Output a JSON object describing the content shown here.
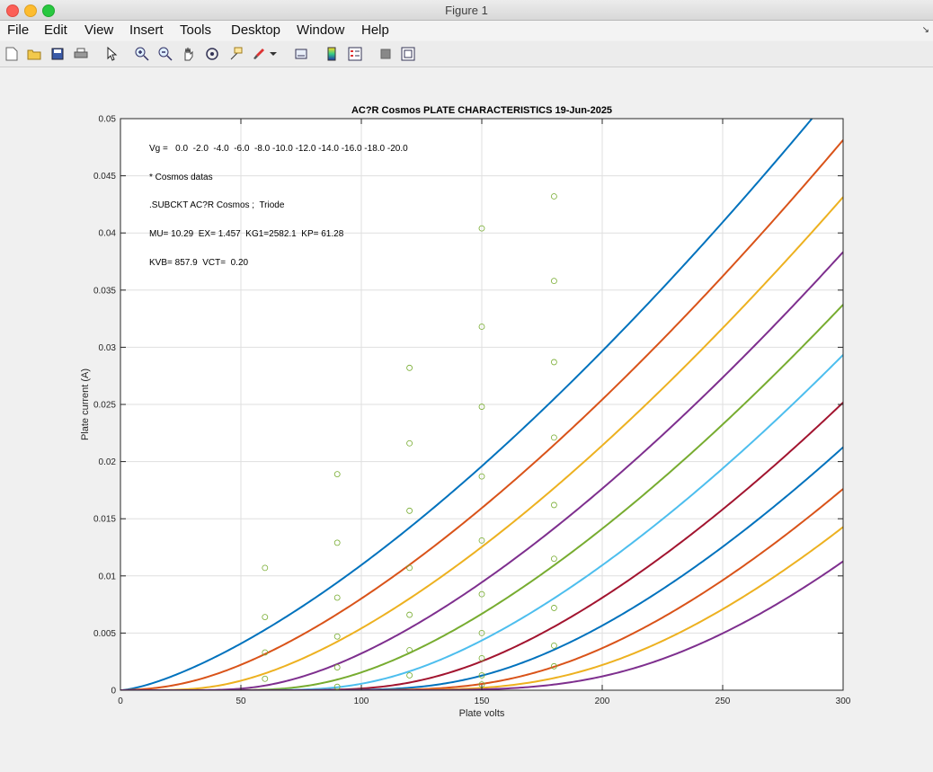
{
  "window": {
    "title": "Figure 1"
  },
  "menu": [
    "File",
    "Edit",
    "View",
    "Insert",
    "Tools",
    "Desktop",
    "Window",
    "Help"
  ],
  "toolbar_icons": [
    "new-figure-icon",
    "open-file-icon",
    "save-icon",
    "print-icon",
    "pointer-icon",
    "zoom-in-icon",
    "zoom-out-icon",
    "pan-icon",
    "rotate-3d-icon",
    "data-cursor-icon",
    "brush-icon",
    "brush-dropdown-icon",
    "link-plot-icon",
    "colorbar-icon",
    "legend-icon",
    "hide-plot-tools-icon",
    "show-plot-tools-icon"
  ],
  "chart_data": {
    "type": "line",
    "title": "AC?R Cosmos PLATE CHARACTERISTICS  19-Jun-2025",
    "xlabel": "Plate volts",
    "ylabel": "Plate current (A)",
    "xlim": [
      0,
      300
    ],
    "ylim": [
      0,
      0.05
    ],
    "x_ticks": [
      "0",
      "50",
      "100",
      "150",
      "200",
      "250",
      "300"
    ],
    "y_ticks": [
      "0",
      "0.005",
      "0.01",
      "0.015",
      "0.02",
      "0.025",
      "0.03",
      "0.035",
      "0.04",
      "0.045",
      "0.05"
    ],
    "grid": true,
    "annotations": [
      "Vg =   0.0  -2.0  -4.0  -6.0  -8.0 -10.0 -12.0 -14.0 -16.0 -18.0 -20.0",
      "* Cosmos datas",
      ".SUBCKT AC?R Cosmos ;  Triode",
      "MU= 10.29  EX= 1.457  KG1=2582.1  KP= 61.28",
      "KVB= 857.9  VCT=  0.20"
    ],
    "model": {
      "MU": 10.29,
      "EX": 1.457,
      "KG1": 2582.1,
      "KP": 61.28,
      "KVB": 857.9,
      "VCT": 0.2
    },
    "series": [
      {
        "vg": 0.0,
        "color": "#0072bd"
      },
      {
        "vg": -2.0,
        "color": "#d95319"
      },
      {
        "vg": -4.0,
        "color": "#edb120"
      },
      {
        "vg": -6.0,
        "color": "#7e2f8e"
      },
      {
        "vg": -8.0,
        "color": "#77ac30"
      },
      {
        "vg": -10.0,
        "color": "#4dbeee"
      },
      {
        "vg": -12.0,
        "color": "#a2142f"
      },
      {
        "vg": -14.0,
        "color": "#0072bd"
      },
      {
        "vg": -16.0,
        "color": "#d95319"
      },
      {
        "vg": -18.0,
        "color": "#edb120"
      },
      {
        "vg": -20.0,
        "color": "#7e2f8e"
      }
    ],
    "measured_points": {
      "color": "#77ac30",
      "points": [
        [
          60,
          0.0107
        ],
        [
          60,
          0.0064
        ],
        [
          60,
          0.0033
        ],
        [
          60,
          0.001
        ],
        [
          90,
          0.0189
        ],
        [
          90,
          0.0129
        ],
        [
          90,
          0.0081
        ],
        [
          90,
          0.0047
        ],
        [
          90,
          0.002
        ],
        [
          90,
          0.0003
        ],
        [
          120,
          0.0282
        ],
        [
          120,
          0.0216
        ],
        [
          120,
          0.0157
        ],
        [
          120,
          0.0107
        ],
        [
          120,
          0.0066
        ],
        [
          120,
          0.0035
        ],
        [
          120,
          0.0013
        ],
        [
          150,
          0.0404
        ],
        [
          150,
          0.0318
        ],
        [
          150,
          0.0248
        ],
        [
          150,
          0.0187
        ],
        [
          150,
          0.0131
        ],
        [
          150,
          0.0084
        ],
        [
          150,
          0.005
        ],
        [
          150,
          0.0028
        ],
        [
          150,
          0.0013
        ],
        [
          150,
          0.0005
        ],
        [
          180,
          0.0432
        ],
        [
          180,
          0.0358
        ],
        [
          180,
          0.0287
        ],
        [
          180,
          0.0221
        ],
        [
          180,
          0.0162
        ],
        [
          180,
          0.0115
        ],
        [
          180,
          0.0072
        ],
        [
          180,
          0.0039
        ],
        [
          180,
          0.0021
        ]
      ]
    }
  }
}
